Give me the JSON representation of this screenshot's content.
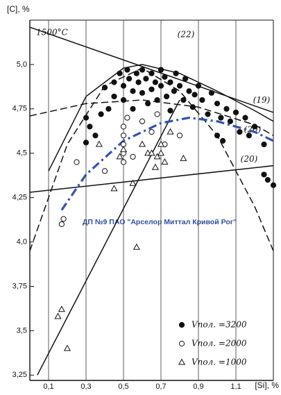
{
  "chart_data": {
    "type": "scatter",
    "x_label": "[Si], %",
    "y_label": "[C], %",
    "xlim": [
      0,
      1.3
    ],
    "ylim": [
      3.22,
      5.25
    ],
    "xticks": [
      {
        "value": 0.1,
        "label": "0,1"
      },
      {
        "value": 0.3,
        "label": "0,3"
      },
      {
        "value": 0.5,
        "label": "0,5"
      },
      {
        "value": 0.7,
        "label": "0,7"
      },
      {
        "value": 0.9,
        "label": "0,9"
      },
      {
        "value": 1.1,
        "label": "1,1"
      }
    ],
    "yticks": [
      {
        "value": 3.25,
        "label": "3,25"
      },
      {
        "value": 3.5,
        "label": "3,5"
      },
      {
        "value": 3.75,
        "label": "3,75"
      },
      {
        "value": 4.0,
        "label": "4,0"
      },
      {
        "value": 4.25,
        "label": "4,25"
      },
      {
        "value": 4.5,
        "label": "4,5"
      },
      {
        "value": 4.75,
        "label": "4,75"
      },
      {
        "value": 5.0,
        "label": "5,0"
      }
    ],
    "grid": true,
    "legend": "lower right",
    "annotation": "ДП №9 ПАО \"Арселор Миттал Кривой Рог\"",
    "series": [
      {
        "name": "Vпол. =3200",
        "marker": "filled-circle",
        "color": "#111111",
        "x": [
          0.3,
          0.32,
          0.35,
          0.3,
          0.38,
          0.4,
          0.42,
          0.45,
          0.45,
          0.48,
          0.5,
          0.5,
          0.52,
          0.53,
          0.55,
          0.55,
          0.57,
          0.58,
          0.6,
          0.6,
          0.62,
          0.63,
          0.65,
          0.65,
          0.67,
          0.68,
          0.7,
          0.7,
          0.72,
          0.73,
          0.75,
          0.75,
          0.77,
          0.78,
          0.8,
          0.82,
          0.83,
          0.85,
          0.87,
          0.88,
          0.9,
          0.92,
          0.95,
          0.97,
          1.0,
          1.02,
          1.05,
          1.07,
          1.1,
          1.12,
          1.15,
          1.17,
          1.2,
          1.03,
          1.0,
          1.25,
          1.27,
          1.3,
          1.25
        ],
        "y": [
          4.7,
          4.65,
          4.6,
          4.56,
          4.72,
          4.87,
          4.75,
          4.82,
          4.9,
          4.95,
          4.88,
          4.8,
          4.97,
          4.92,
          4.85,
          4.75,
          4.95,
          4.9,
          4.97,
          4.84,
          4.92,
          4.78,
          4.95,
          4.86,
          4.9,
          4.8,
          4.97,
          4.88,
          4.93,
          4.82,
          4.9,
          4.74,
          4.85,
          4.95,
          4.88,
          4.8,
          4.92,
          4.85,
          4.76,
          4.83,
          4.88,
          4.8,
          4.72,
          4.84,
          4.78,
          4.7,
          4.75,
          4.68,
          4.73,
          4.62,
          4.7,
          4.6,
          4.65,
          4.57,
          4.6,
          4.55,
          4.35,
          4.32,
          4.38
        ]
      },
      {
        "name": "Vпол. =2000",
        "marker": "open-circle",
        "color": "#111111",
        "x": [
          0.17,
          0.18,
          0.25,
          0.4,
          0.5,
          0.5,
          0.5,
          0.5,
          0.5,
          0.52,
          0.55,
          0.6,
          0.65,
          0.68,
          0.72,
          0.8
        ],
        "y": [
          4.1,
          4.13,
          4.45,
          4.4,
          4.65,
          4.6,
          4.55,
          4.5,
          4.45,
          4.7,
          4.48,
          4.68,
          4.62,
          4.72,
          4.55,
          4.6
        ]
      },
      {
        "name": "Vпол. =1000",
        "marker": "triangle",
        "color": "#111111",
        "x": [
          0.15,
          0.17,
          0.2,
          0.37,
          0.45,
          0.5,
          0.55,
          0.57,
          0.6,
          0.63,
          0.65,
          0.67,
          0.68,
          0.7,
          0.7,
          0.72,
          0.75,
          0.82,
          0.48
        ],
        "y": [
          3.58,
          3.62,
          3.4,
          4.55,
          4.3,
          4.52,
          4.33,
          3.97,
          4.55,
          4.5,
          4.5,
          4.42,
          4.48,
          4.55,
          4.5,
          4.45,
          4.62,
          4.47,
          4.48
        ]
      }
    ],
    "lines": [
      {
        "label": "1500°C",
        "style": "solid",
        "color": "#111111",
        "x": [
          0,
          1.3
        ],
        "y": [
          5.21,
          4.73
        ]
      },
      {
        "label": "(19)",
        "style": "solid",
        "color": "#111111",
        "x": [
          0.1,
          0.3,
          0.5,
          0.6,
          0.8,
          1.0,
          1.2,
          1.3
        ],
        "y": [
          4.4,
          4.82,
          4.98,
          5.0,
          4.95,
          4.85,
          4.74,
          4.68
        ]
      },
      {
        "label": "(20)",
        "style": "dashed",
        "color": "#111111",
        "x": [
          0,
          0.3,
          0.6,
          0.9,
          1.2,
          1.3
        ],
        "y": [
          4.71,
          4.78,
          4.8,
          4.76,
          4.66,
          4.6
        ]
      },
      {
        "label": "(22)",
        "style": "dashed",
        "color": "#111111",
        "x": [
          0,
          0.2,
          0.4,
          0.6,
          0.8,
          1.0,
          1.2,
          1.3
        ],
        "y": [
          3.95,
          4.55,
          4.88,
          4.98,
          4.85,
          4.6,
          4.2,
          3.95
        ]
      },
      {
        "style": "solid",
        "color": "#111111",
        "x": [
          0.04,
          0.8
        ],
        "y": [
          3.25,
          4.8
        ]
      },
      {
        "label": "(20)",
        "style": "solid",
        "color": "#111111",
        "x": [
          0,
          1.3
        ],
        "y": [
          4.28,
          4.43
        ]
      },
      {
        "style": "dashdot",
        "color": "#3552b0",
        "x": [
          0.17,
          0.3,
          0.5,
          0.7,
          0.85,
          1.0,
          1.2,
          1.3
        ],
        "y": [
          4.18,
          4.38,
          4.57,
          4.67,
          4.7,
          4.68,
          4.62,
          4.57
        ]
      }
    ]
  }
}
